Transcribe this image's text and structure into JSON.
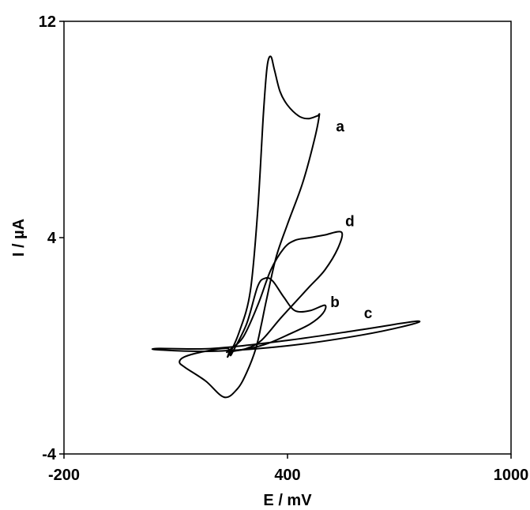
{
  "chart_data": {
    "type": "line",
    "title": "",
    "xlabel": "E / mV",
    "ylabel": "I / µA",
    "xlim": [
      -200,
      1000
    ],
    "ylim": [
      -4,
      12
    ],
    "xticks": [
      -200,
      400,
      1000
    ],
    "yticks": [
      -4,
      4,
      12
    ],
    "xtick_labels": [
      "-200",
      "400",
      "1000"
    ],
    "ytick_labels": [
      "-4",
      "4",
      "12"
    ],
    "grid": false,
    "legend": "none",
    "line_color": "#000000",
    "series": [
      {
        "label": "a",
        "label_at": [
          530,
          8.1
        ],
        "points": [
          [
            240,
            -0.4
          ],
          [
            270,
            0.5
          ],
          [
            300,
            2.0
          ],
          [
            320,
            5.0
          ],
          [
            335,
            8.5
          ],
          [
            345,
            10.3
          ],
          [
            355,
            10.7
          ],
          [
            365,
            10.2
          ],
          [
            380,
            9.4
          ],
          [
            400,
            8.9
          ],
          [
            430,
            8.5
          ],
          [
            455,
            8.4
          ],
          [
            480,
            8.5
          ],
          [
            485,
            8.5
          ],
          [
            470,
            7.5
          ],
          [
            440,
            6.0
          ],
          [
            400,
            4.5
          ],
          [
            370,
            3.3
          ],
          [
            345,
            1.8
          ],
          [
            330,
            0.8
          ],
          [
            315,
            -0.1
          ],
          [
            290,
            -1.0
          ],
          [
            265,
            -1.6
          ],
          [
            230,
            -1.9
          ],
          [
            180,
            -1.3
          ],
          [
            125,
            -0.8
          ],
          [
            110,
            -0.6
          ],
          [
            125,
            -0.4
          ],
          [
            180,
            -0.2
          ],
          [
            240,
            -0.1
          ]
        ]
      },
      {
        "label": "b",
        "label_at": [
          515,
          1.6
        ],
        "points": [
          [
            250,
            -0.3
          ],
          [
            290,
            0.8
          ],
          [
            320,
            2.2
          ],
          [
            340,
            2.5
          ],
          [
            360,
            2.4
          ],
          [
            390,
            1.8
          ],
          [
            420,
            1.3
          ],
          [
            460,
            1.3
          ],
          [
            500,
            1.5
          ],
          [
            495,
            1.2
          ],
          [
            460,
            0.8
          ],
          [
            400,
            0.4
          ],
          [
            350,
            0.1
          ],
          [
            300,
            -0.1
          ],
          [
            255,
            -0.2
          ]
        ]
      },
      {
        "label": "c",
        "label_at": [
          605,
          1.2
        ],
        "points": [
          [
            55,
            -0.1
          ],
          [
            200,
            -0.1
          ],
          [
            400,
            0.2
          ],
          [
            600,
            0.6
          ],
          [
            740,
            0.9
          ],
          [
            735,
            0.8
          ],
          [
            600,
            0.4
          ],
          [
            400,
            0.0
          ],
          [
            200,
            -0.2
          ],
          [
            55,
            -0.15
          ]
        ]
      },
      {
        "label": "d",
        "label_at": [
          555,
          4.6
        ],
        "points": [
          [
            240,
            -0.2
          ],
          [
            280,
            0.3
          ],
          [
            320,
            1.5
          ],
          [
            355,
            2.8
          ],
          [
            390,
            3.6
          ],
          [
            420,
            3.9
          ],
          [
            460,
            4.0
          ],
          [
            500,
            4.1
          ],
          [
            545,
            4.2
          ],
          [
            535,
            3.6
          ],
          [
            500,
            2.8
          ],
          [
            460,
            2.2
          ],
          [
            420,
            1.6
          ],
          [
            380,
            1.0
          ],
          [
            330,
            0.2
          ],
          [
            290,
            -0.1
          ],
          [
            245,
            -0.2
          ]
        ]
      }
    ]
  }
}
